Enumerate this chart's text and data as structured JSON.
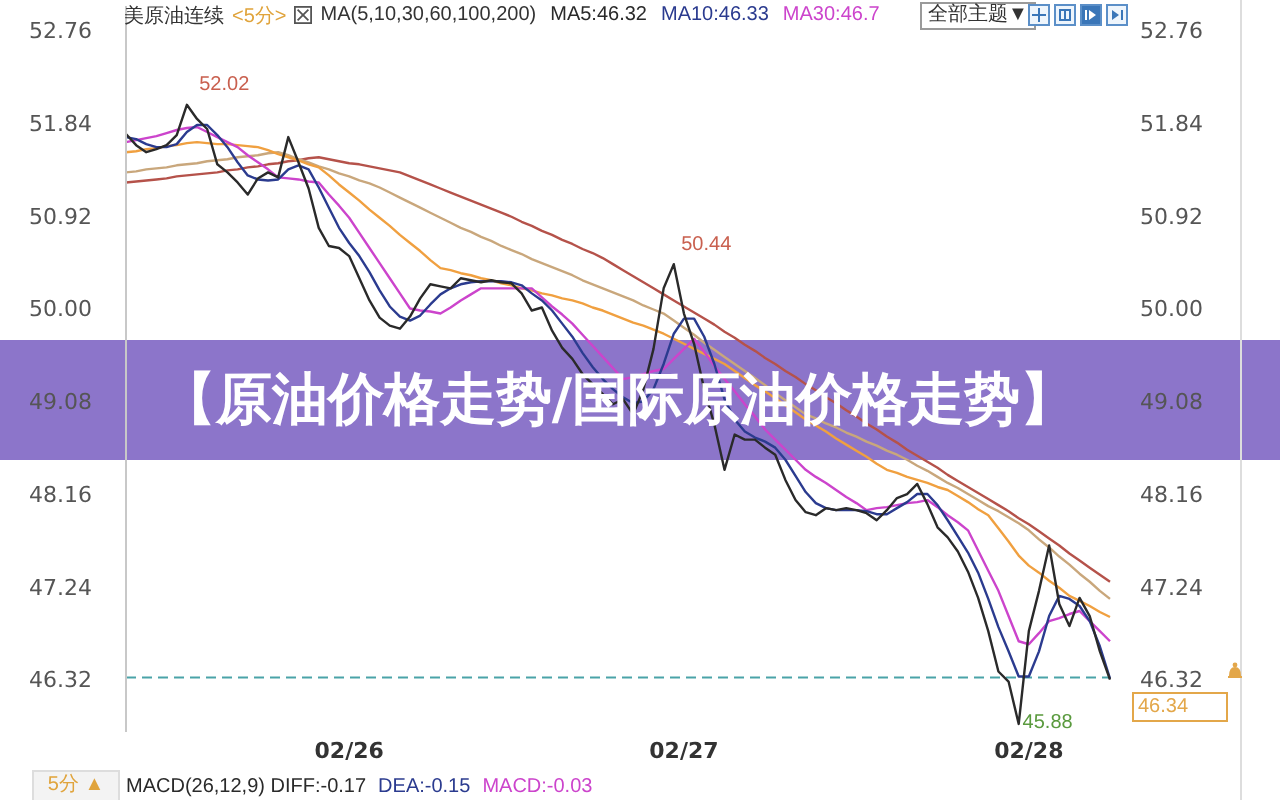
{
  "chart_data": {
    "type": "line",
    "title": "【原油价格走势/国际原油价格走势】",
    "subtitle": "美原油连续",
    "legend_title": "MA(5,10,30,60,100,200)",
    "legend": "top",
    "categories": [
      null,
      null,
      null,
      null,
      null,
      null,
      null,
      null,
      null,
      null,
      null,
      null,
      null,
      null,
      null,
      null,
      null,
      null,
      null,
      null,
      null,
      null,
      "02/26",
      null,
      null,
      null,
      null,
      null,
      null,
      null,
      null,
      null,
      null,
      null,
      null,
      null,
      null,
      null,
      null,
      null,
      null,
      null,
      null,
      null,
      null,
      null,
      null,
      null,
      null,
      null,
      null,
      null,
      null,
      null,
      null,
      "02/27",
      null,
      null,
      null,
      null,
      null,
      null,
      null,
      null,
      null,
      null,
      null,
      null,
      null,
      null,
      null,
      null,
      null,
      null,
      null,
      null,
      null,
      null,
      null,
      null,
      null,
      null,
      null,
      null,
      null,
      null,
      null,
      null,
      null,
      "02/28",
      null,
      null,
      null,
      null,
      null,
      null,
      null,
      null
    ],
    "series": [
      {
        "name": "MA5:46.32",
        "color": "#2a2a2a",
        "values": [
          51.73,
          51.62,
          51.55,
          51.58,
          51.62,
          51.72,
          52.02,
          51.88,
          51.78,
          51.43,
          51.35,
          51.25,
          51.13,
          51.29,
          51.35,
          51.3,
          51.7,
          51.45,
          51.19,
          50.8,
          50.62,
          50.6,
          50.52,
          50.3,
          50.08,
          49.91,
          49.83,
          49.8,
          49.92,
          50.1,
          50.24,
          50.22,
          50.2,
          50.3,
          50.28,
          50.26,
          50.28,
          50.26,
          50.25,
          50.15,
          49.98,
          50.01,
          49.78,
          49.61,
          49.5,
          49.35,
          49.25,
          49.15,
          49.05,
          49.1,
          48.95,
          49.2,
          49.6,
          50.2,
          50.44,
          49.95,
          49.65,
          49.2,
          48.85,
          48.4,
          48.75,
          48.7,
          48.7,
          48.62,
          48.55,
          48.3,
          48.1,
          47.98,
          47.95,
          48.02,
          48.0,
          48.02,
          48.0,
          47.97,
          47.9,
          48.0,
          48.12,
          48.16,
          48.26,
          48.06,
          47.83,
          47.73,
          47.59,
          47.39,
          47.13,
          46.8,
          46.4,
          46.3,
          45.88,
          46.8,
          47.2,
          47.65,
          47.07,
          46.85,
          47.13,
          46.95,
          46.6,
          46.32
        ],
        "value_labels": [
          null,
          null,
          null,
          null,
          null,
          null,
          "52.02",
          null,
          null,
          null,
          null,
          null,
          null,
          null,
          null,
          null,
          null,
          null,
          null,
          null,
          null,
          null,
          null,
          null,
          null,
          null,
          null,
          null,
          null,
          null,
          null,
          null,
          null,
          null,
          null,
          null,
          null,
          null,
          null,
          null,
          null,
          null,
          null,
          null,
          null,
          null,
          null,
          null,
          null,
          null,
          null,
          null,
          null,
          null,
          "50.44",
          null,
          null,
          null,
          null,
          null,
          null,
          null,
          null,
          null,
          null,
          null,
          null,
          null,
          null,
          null,
          null,
          null,
          null,
          null,
          null,
          null,
          null,
          null,
          null,
          null,
          null,
          null,
          null,
          null,
          null,
          null,
          null,
          null,
          "45.88",
          null,
          null,
          null,
          null,
          null,
          null,
          null,
          null,
          null
        ]
      },
      {
        "name": "MA10:46.33",
        "color": "#2b3b8f",
        "values": [
          51.7,
          51.68,
          51.63,
          51.6,
          51.6,
          51.63,
          51.75,
          51.82,
          51.82,
          51.72,
          51.6,
          51.45,
          51.32,
          51.28,
          51.27,
          51.28,
          51.38,
          51.42,
          51.38,
          51.2,
          51.0,
          50.8,
          50.65,
          50.52,
          50.36,
          50.18,
          50.02,
          49.92,
          49.88,
          49.93,
          50.04,
          50.14,
          50.2,
          50.24,
          50.26,
          50.27,
          50.27,
          50.27,
          50.26,
          50.23,
          50.15,
          50.08,
          49.98,
          49.85,
          49.72,
          49.56,
          49.42,
          49.3,
          49.2,
          49.12,
          49.06,
          49.08,
          49.2,
          49.45,
          49.75,
          49.9,
          49.9,
          49.72,
          49.45,
          49.1,
          48.9,
          48.78,
          48.72,
          48.68,
          48.62,
          48.5,
          48.34,
          48.18,
          48.07,
          48.02,
          48.0,
          48.0,
          48.0,
          47.99,
          47.96,
          47.96,
          48.02,
          48.08,
          48.16,
          48.16,
          48.05,
          47.9,
          47.74,
          47.58,
          47.38,
          47.12,
          46.84,
          46.6,
          46.35,
          46.35,
          46.6,
          46.95,
          47.15,
          47.12,
          47.05,
          46.9,
          46.65,
          46.33
        ]
      },
      {
        "name": "MA30:46.7",
        "color": "#cc44cc",
        "values": [
          51.65,
          51.67,
          51.69,
          51.71,
          51.74,
          51.77,
          51.79,
          51.8,
          51.75,
          51.7,
          51.65,
          51.6,
          51.52,
          51.45,
          51.38,
          51.3,
          51.29,
          51.28,
          51.26,
          51.25,
          51.13,
          51.02,
          50.9,
          50.75,
          50.6,
          50.45,
          50.3,
          50.15,
          50.0,
          49.98,
          49.97,
          49.95,
          50.01,
          50.08,
          50.14,
          50.2,
          50.2,
          50.2,
          50.2,
          50.2,
          50.2,
          50.11,
          50.02,
          49.94,
          49.85,
          49.74,
          49.63,
          49.52,
          49.41,
          49.3,
          49.32,
          49.35,
          49.38,
          49.4,
          49.5,
          49.6,
          49.7,
          49.57,
          49.43,
          49.3,
          49.18,
          49.05,
          48.93,
          48.8,
          48.7,
          48.6,
          48.5,
          48.4,
          48.33,
          48.27,
          48.2,
          48.13,
          48.07,
          48.0,
          48.02,
          48.03,
          48.05,
          48.07,
          48.08,
          48.1,
          48.03,
          47.95,
          47.88,
          47.8,
          47.6,
          47.4,
          47.2,
          46.95,
          46.7,
          46.67,
          46.78,
          46.9,
          46.93,
          46.97,
          47.0,
          46.9,
          46.8,
          46.7
        ]
      },
      {
        "color": "#f0a040",
        "values": [
          51.55,
          51.56,
          51.58,
          51.59,
          51.61,
          51.62,
          51.64,
          51.65,
          51.64,
          51.63,
          51.63,
          51.62,
          51.61,
          51.6,
          51.57,
          51.53,
          51.5,
          51.47,
          51.43,
          51.4,
          51.32,
          51.23,
          51.15,
          51.07,
          50.98,
          50.9,
          50.82,
          50.73,
          50.65,
          50.57,
          50.48,
          50.4,
          50.38,
          50.35,
          50.33,
          50.3,
          50.28,
          50.25,
          50.23,
          50.2,
          50.18,
          50.15,
          50.13,
          50.1,
          50.08,
          50.05,
          50.01,
          49.98,
          49.94,
          49.9,
          49.86,
          49.83,
          49.79,
          49.75,
          49.7,
          49.65,
          49.6,
          49.55,
          49.5,
          49.45,
          49.38,
          49.31,
          49.24,
          49.18,
          49.11,
          49.04,
          48.97,
          48.9,
          48.84,
          48.78,
          48.71,
          48.65,
          48.59,
          48.53,
          48.46,
          48.4,
          48.37,
          48.33,
          48.3,
          48.27,
          48.23,
          48.2,
          48.14,
          48.08,
          48.01,
          47.95,
          47.82,
          47.69,
          47.55,
          47.45,
          47.38,
          47.3,
          47.23,
          47.15,
          47.1,
          47.05,
          46.99,
          46.94
        ]
      },
      {
        "color": "#c9a77c",
        "values": [
          51.35,
          51.36,
          51.38,
          51.39,
          51.4,
          51.42,
          51.43,
          51.44,
          51.46,
          51.47,
          51.48,
          51.5,
          51.51,
          51.52,
          51.54,
          51.55,
          51.52,
          51.48,
          51.45,
          51.41,
          51.38,
          51.34,
          51.31,
          51.27,
          51.24,
          51.2,
          51.15,
          51.1,
          51.05,
          51.0,
          50.95,
          50.9,
          50.85,
          50.8,
          50.76,
          50.71,
          50.67,
          50.62,
          50.58,
          50.54,
          50.49,
          50.45,
          50.41,
          50.37,
          50.33,
          50.28,
          50.24,
          50.2,
          50.16,
          50.12,
          50.08,
          50.03,
          49.99,
          49.95,
          49.88,
          49.81,
          49.74,
          49.66,
          49.59,
          49.52,
          49.45,
          49.38,
          49.31,
          49.24,
          49.16,
          49.09,
          49.02,
          48.95,
          48.91,
          48.86,
          48.82,
          48.77,
          48.73,
          48.68,
          48.64,
          48.59,
          48.55,
          48.5,
          48.44,
          48.39,
          48.33,
          48.27,
          48.22,
          48.16,
          48.1,
          48.04,
          47.99,
          47.93,
          47.87,
          47.8,
          47.71,
          47.63,
          47.54,
          47.46,
          47.37,
          47.29,
          47.2,
          47.12
        ]
      },
      {
        "color": "#b5524a",
        "values": [
          51.25,
          51.26,
          51.27,
          51.28,
          51.29,
          51.31,
          51.32,
          51.33,
          51.34,
          51.35,
          51.37,
          51.38,
          51.4,
          51.41,
          51.43,
          51.44,
          51.46,
          51.47,
          51.49,
          51.5,
          51.48,
          51.46,
          51.44,
          51.43,
          51.41,
          51.39,
          51.37,
          51.35,
          51.31,
          51.27,
          51.23,
          51.19,
          51.15,
          51.11,
          51.07,
          51.03,
          50.99,
          50.95,
          50.91,
          50.86,
          50.82,
          50.77,
          50.73,
          50.68,
          50.64,
          50.59,
          50.55,
          50.5,
          50.44,
          50.38,
          50.32,
          50.26,
          50.2,
          50.14,
          50.08,
          50.02,
          49.96,
          49.9,
          49.84,
          49.77,
          49.71,
          49.64,
          49.58,
          49.51,
          49.45,
          49.38,
          49.32,
          49.25,
          49.19,
          49.12,
          49.06,
          48.99,
          48.93,
          48.86,
          48.8,
          48.73,
          48.67,
          48.6,
          48.54,
          48.48,
          48.42,
          48.35,
          48.29,
          48.23,
          48.17,
          48.11,
          48.05,
          47.99,
          47.92,
          47.86,
          47.79,
          47.72,
          47.65,
          47.57,
          47.5,
          47.43,
          47.36,
          47.29
        ]
      }
    ],
    "ylim": [
      45.8,
      53.0
    ],
    "yticks": [
      52.76,
      51.84,
      50.92,
      {
        "value": 50,
        "label": "50.00"
      },
      49.08,
      48.16,
      47.24,
      46.32
    ],
    "y2lim": [
      45.8,
      53.0
    ],
    "y2ticks": [
      52.76,
      51.84,
      50.92,
      {
        "value": 50,
        "label": "50.00"
      },
      49.08,
      48.16,
      47.24,
      46.32
    ],
    "ref_lines": [
      {
        "axis": "y",
        "value": 46.34,
        "label": "46.34",
        "color": "#4aa3a8",
        "line_style": "dashed"
      }
    ],
    "annotations": [
      "<5分>",
      "全部主题▼",
      "5分 ▲",
      "MACD(26,12,9) DIFF:-0.17",
      "DEA:-0.15",
      "MACD:-0.03"
    ]
  }
}
